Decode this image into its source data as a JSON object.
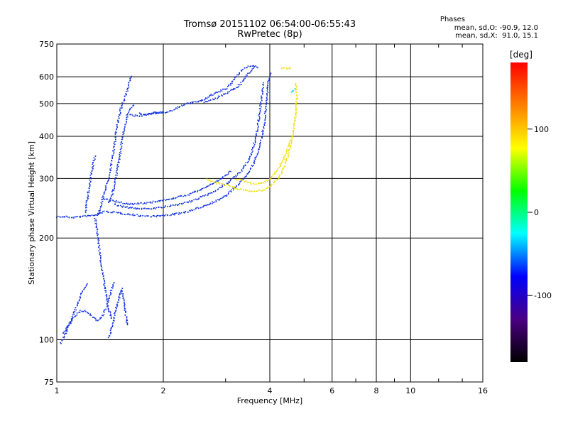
{
  "chart_data": {
    "type": "scatter",
    "title": "Tromsø 20151102 06:54:00-06:55:43",
    "subtitle": "RwPretec (8p)",
    "xlabel": "Frequency [MHz]",
    "ylabel": "Stationary phase Virtual Height [km]",
    "xscale": "log",
    "yscale": "log",
    "xlim": [
      1,
      16
    ],
    "ylim": [
      75,
      750
    ],
    "xticks": [
      1,
      2,
      4,
      6,
      8,
      10,
      16
    ],
    "yticks": [
      75,
      100,
      200,
      300,
      400,
      500,
      600,
      750
    ],
    "grid": true,
    "phases_header": "Phases",
    "stats": [
      "mean, sd,O: -90.9, 12.0",
      "mean, sd,X:  91.0, 15.1"
    ],
    "colorbar": {
      "label": "[deg]",
      "ticks": [
        -100,
        0,
        100
      ],
      "range": [
        -180,
        180
      ],
      "colors": [
        "#000000",
        "#4b0082",
        "#0000ff",
        "#00ffff",
        "#00ff00",
        "#ffff00",
        "#ff8000",
        "#ff0000"
      ]
    },
    "series": [
      {
        "color": "#1030e0",
        "traces": [
          [
            [
              1.0,
              232
            ],
            [
              1.05,
              232
            ],
            [
              1.1,
              231
            ],
            [
              1.15,
              232
            ],
            [
              1.2,
              233
            ],
            [
              1.26,
              234
            ],
            [
              1.3,
              236
            ],
            [
              1.35,
              240
            ],
            [
              1.4,
              240
            ],
            [
              1.5,
              238
            ],
            [
              1.6,
              236
            ],
            [
              1.7,
              234
            ],
            [
              1.8,
              233
            ],
            [
              1.9,
              233
            ],
            [
              2.0,
              234
            ],
            [
              2.2,
              237
            ],
            [
              2.4,
              242
            ],
            [
              2.6,
              250
            ],
            [
              2.8,
              258
            ],
            [
              3.0,
              268
            ],
            [
              3.2,
              285
            ],
            [
              3.4,
              305
            ],
            [
              3.6,
              335
            ],
            [
              3.75,
              380
            ],
            [
              3.85,
              440
            ],
            [
              3.9,
              510
            ],
            [
              3.95,
              580
            ],
            [
              4.0,
              620
            ]
          ],
          [
            [
              1.45,
              252
            ],
            [
              1.55,
              248
            ],
            [
              1.7,
              245
            ],
            [
              1.9,
              246
            ],
            [
              2.1,
              250
            ],
            [
              2.4,
              258
            ],
            [
              2.7,
              272
            ],
            [
              3.0,
              290
            ],
            [
              3.3,
              315
            ],
            [
              3.5,
              345
            ],
            [
              3.65,
              400
            ],
            [
              3.72,
              460
            ],
            [
              3.78,
              520
            ],
            [
              3.82,
              580
            ]
          ],
          [
            [
              1.35,
              262
            ],
            [
              1.45,
              258
            ],
            [
              1.6,
              253
            ],
            [
              1.8,
              255
            ],
            [
              2.0,
              260
            ],
            [
              2.3,
              268
            ],
            [
              2.6,
              282
            ],
            [
              2.9,
              300
            ],
            [
              3.1,
              318
            ]
          ],
          [
            [
              1.3,
              235
            ],
            [
              1.32,
              245
            ],
            [
              1.34,
              260
            ],
            [
              1.36,
              275
            ],
            [
              1.38,
              290
            ],
            [
              1.4,
              305
            ],
            [
              1.42,
              330
            ],
            [
              1.44,
              360
            ],
            [
              1.46,
              400
            ],
            [
              1.48,
              440
            ],
            [
              1.5,
              470
            ],
            [
              1.52,
              495
            ],
            [
              1.55,
              520
            ],
            [
              1.58,
              550
            ],
            [
              1.6,
              580
            ],
            [
              1.62,
              610
            ]
          ],
          [
            [
              1.4,
              255
            ],
            [
              1.43,
              270
            ],
            [
              1.46,
              300
            ],
            [
              1.5,
              350
            ],
            [
              1.53,
              400
            ],
            [
              1.56,
              440
            ],
            [
              1.58,
              470
            ],
            [
              1.62,
              490
            ],
            [
              1.66,
              500
            ]
          ],
          [
            [
              1.2,
              240
            ],
            [
              1.22,
              270
            ],
            [
              1.24,
              300
            ],
            [
              1.26,
              330
            ],
            [
              1.28,
              355
            ]
          ],
          [
            [
              1.28,
              230
            ],
            [
              1.3,
              205
            ],
            [
              1.32,
              180
            ],
            [
              1.34,
              160
            ],
            [
              1.36,
              145
            ],
            [
              1.38,
              132
            ],
            [
              1.4,
              122
            ],
            [
              1.43,
              115
            ]
          ],
          [
            [
              1.04,
              105
            ],
            [
              1.08,
              112
            ],
            [
              1.12,
              118
            ],
            [
              1.16,
              122
            ],
            [
              1.2,
              122
            ],
            [
              1.25,
              118
            ],
            [
              1.3,
              114
            ],
            [
              1.34,
              118
            ],
            [
              1.38,
              126
            ],
            [
              1.42,
              140
            ],
            [
              1.45,
              150
            ]
          ],
          [
            [
              1.02,
              98
            ],
            [
              1.06,
              106
            ],
            [
              1.1,
              116
            ],
            [
              1.14,
              128
            ],
            [
              1.18,
              140
            ],
            [
              1.22,
              148
            ]
          ],
          [
            [
              1.4,
              102
            ],
            [
              1.43,
              110
            ],
            [
              1.46,
              122
            ],
            [
              1.5,
              135
            ],
            [
              1.52,
              142
            ],
            [
              1.55,
              125
            ],
            [
              1.58,
              110
            ]
          ],
          [
            [
              1.7,
              470
            ],
            [
              1.8,
              465
            ],
            [
              1.9,
              470
            ],
            [
              2.0,
              472
            ],
            [
              2.1,
              478
            ],
            [
              2.2,
              490
            ],
            [
              2.3,
              500
            ],
            [
              2.4,
              505
            ],
            [
              2.5,
              508
            ],
            [
              2.6,
              515
            ],
            [
              2.7,
              528
            ],
            [
              2.8,
              540
            ],
            [
              2.9,
              548
            ],
            [
              3.0,
              555
            ],
            [
              3.1,
              575
            ],
            [
              3.2,
              600
            ],
            [
              3.3,
              625
            ],
            [
              3.4,
              640
            ],
            [
              3.55,
              650
            ],
            [
              3.7,
              640
            ]
          ],
          [
            [
              2.6,
              505
            ],
            [
              2.8,
              520
            ],
            [
              3.0,
              538
            ],
            [
              3.2,
              560
            ],
            [
              3.3,
              575
            ],
            [
              3.4,
              600
            ],
            [
              3.5,
              620
            ],
            [
              3.6,
              645
            ]
          ],
          [
            [
              1.6,
              465
            ],
            [
              1.7,
              460
            ],
            [
              1.85,
              470
            ],
            [
              2.0,
              475
            ]
          ]
        ]
      },
      {
        "color": "#f0e000",
        "traces": [
          [
            [
              2.65,
              300
            ],
            [
              2.8,
              292
            ],
            [
              3.0,
              288
            ],
            [
              3.2,
              282
            ],
            [
              3.4,
              278
            ],
            [
              3.6,
              276
            ],
            [
              3.8,
              278
            ],
            [
              4.0,
              285
            ],
            [
              4.2,
              300
            ],
            [
              4.4,
              330
            ],
            [
              4.55,
              370
            ],
            [
              4.65,
              420
            ],
            [
              4.72,
              470
            ],
            [
              4.75,
              530
            ],
            [
              4.72,
              580
            ]
          ],
          [
            [
              3.2,
              300
            ],
            [
              3.4,
              295
            ],
            [
              3.6,
              290
            ],
            [
              3.8,
              292
            ],
            [
              4.0,
              300
            ],
            [
              4.2,
              320
            ],
            [
              4.4,
              350
            ],
            [
              4.55,
              390
            ]
          ],
          [
            [
              4.3,
              640
            ],
            [
              4.45,
              635
            ],
            [
              4.6,
              640
            ]
          ]
        ]
      },
      {
        "color": "#00d0e0",
        "traces": [
          [
            [
              4.6,
              540
            ],
            [
              4.7,
              555
            ]
          ]
        ]
      }
    ]
  }
}
